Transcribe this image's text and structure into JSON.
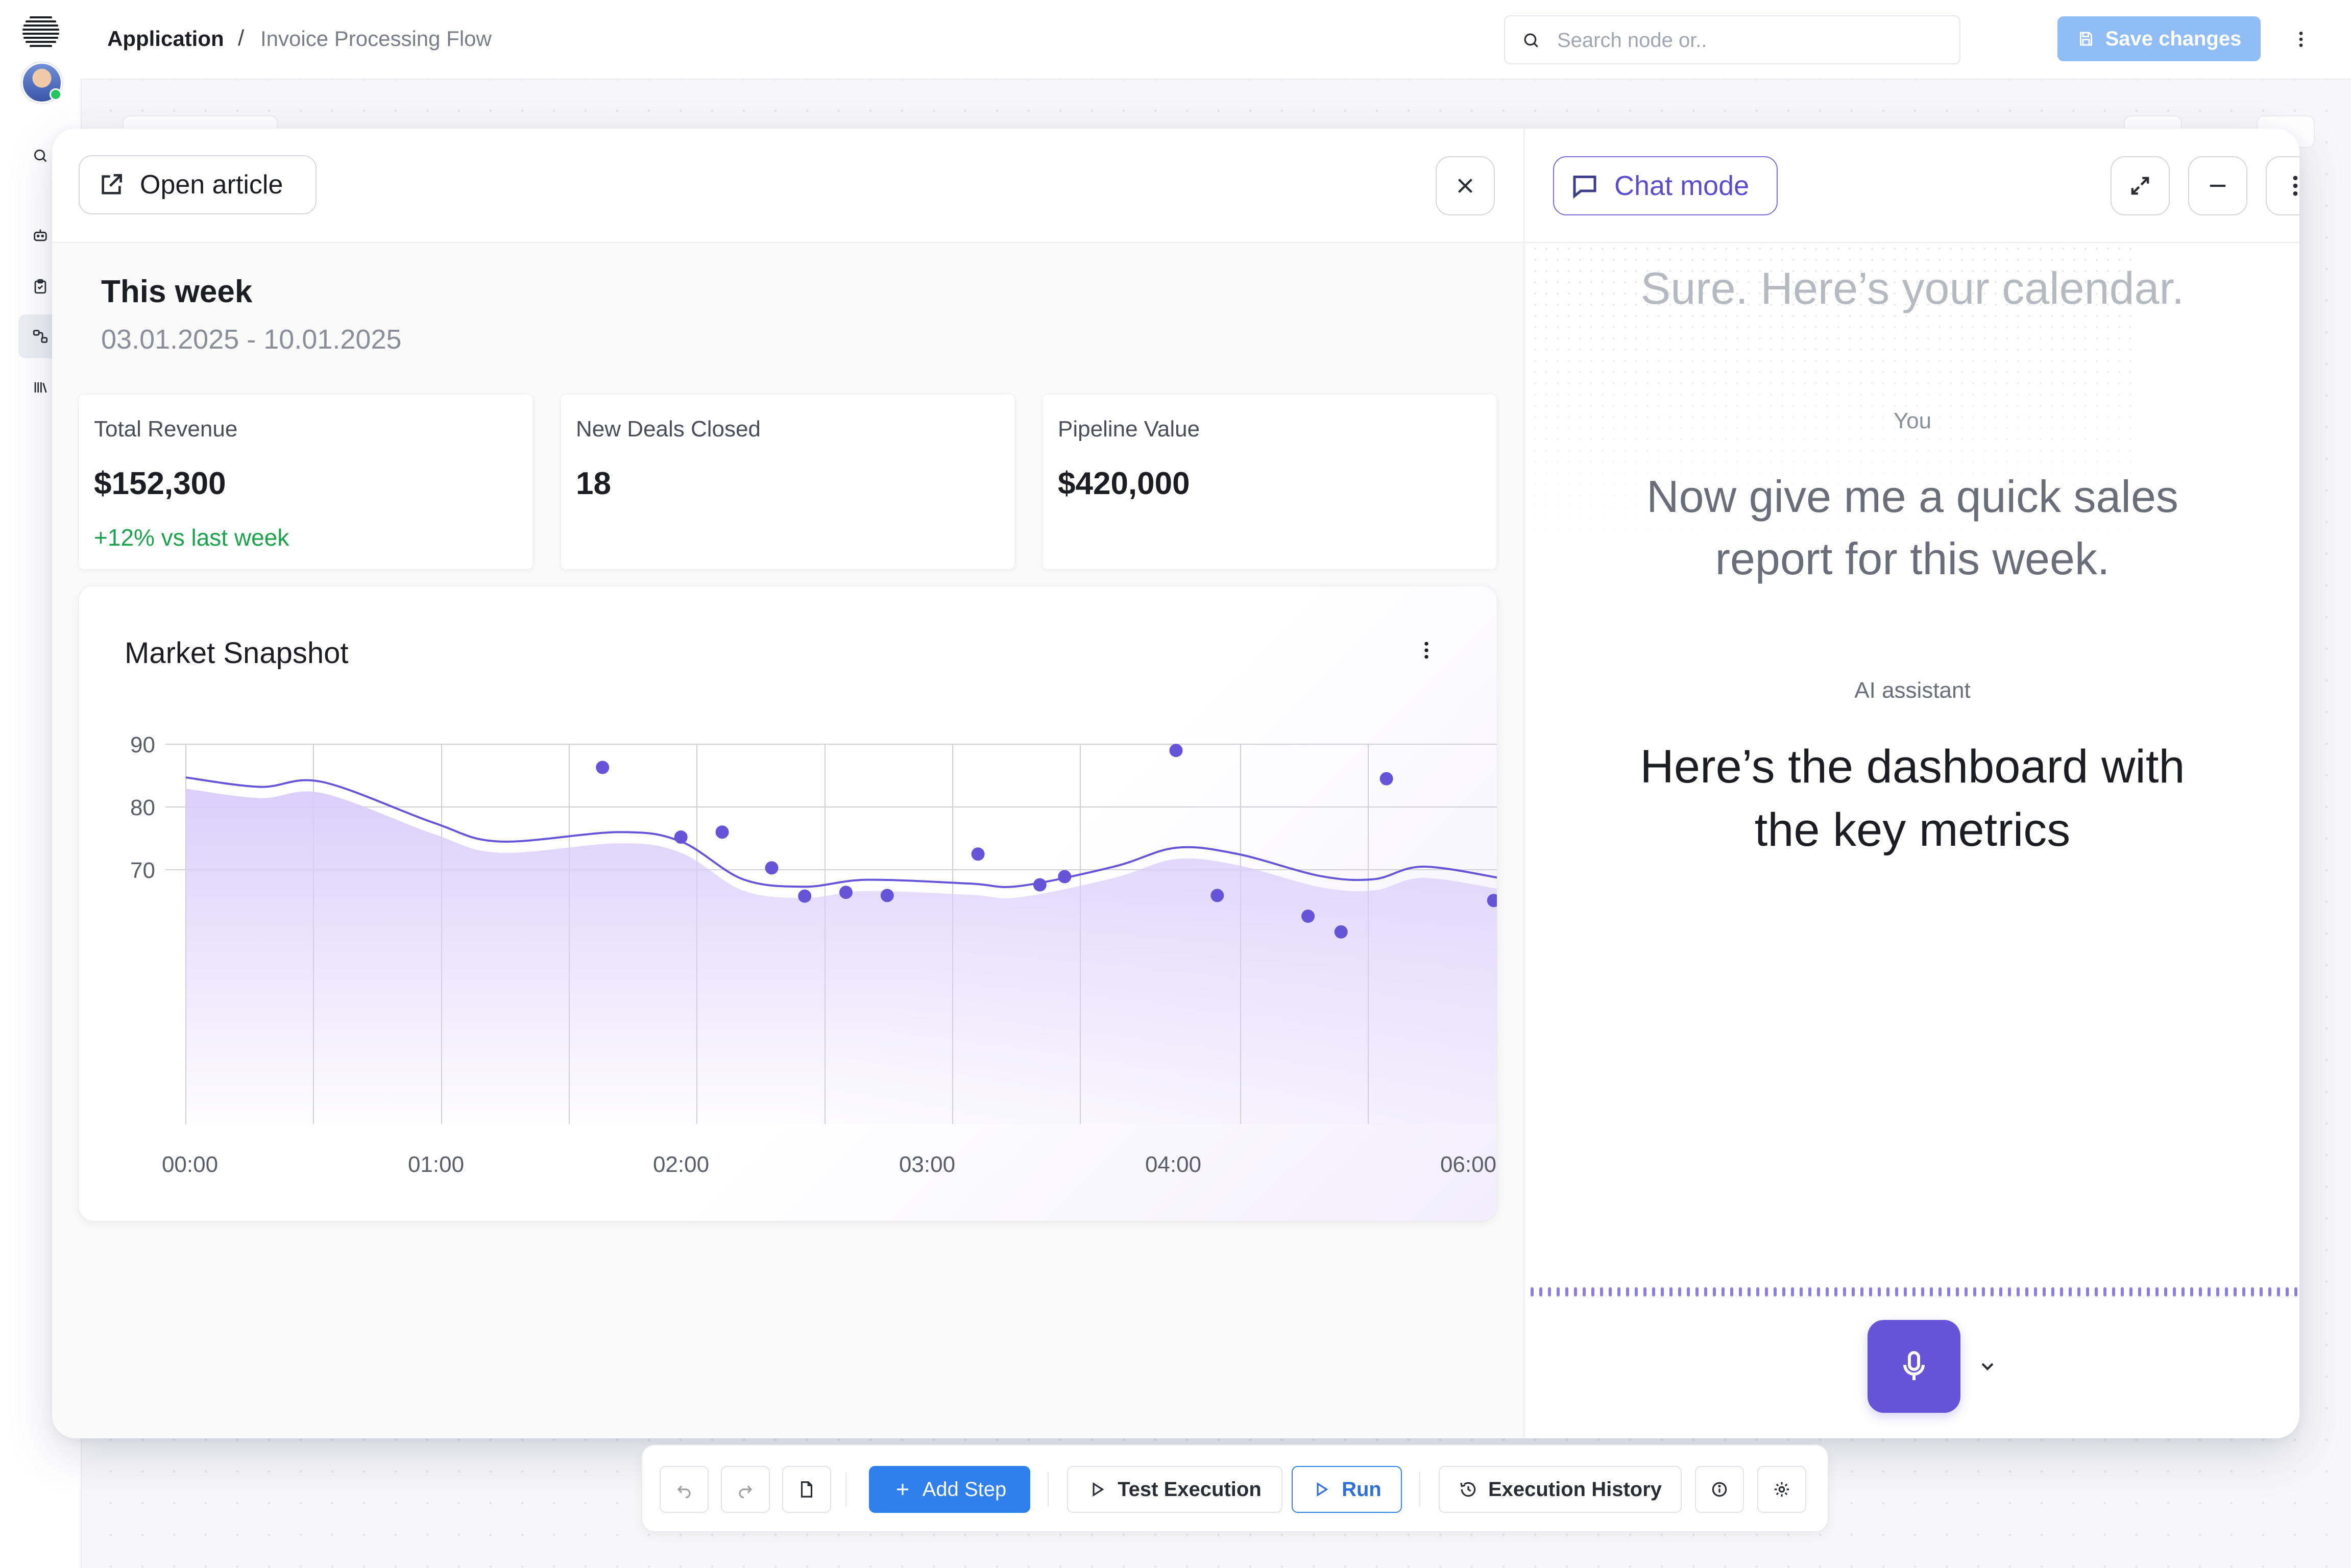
{
  "breadcrumb": {
    "app": "Application",
    "separator": "/",
    "flow": "Invoice Processing Flow"
  },
  "search": {
    "placeholder": "Search node or.."
  },
  "topbar": {
    "save_label": "Save changes"
  },
  "modal": {
    "open_article_label": "Open article",
    "week": {
      "title": "This week",
      "range": "03.01.2025 - 10.01.2025"
    },
    "kpis": [
      {
        "label": "Total Revenue",
        "value": "$152,300",
        "delta": "+12% vs last week"
      },
      {
        "label": "New Deals Closed",
        "value": "18"
      },
      {
        "label": "Pipeline Value",
        "value": "$420,000"
      }
    ],
    "chart": {
      "title": "Market Snapshot"
    }
  },
  "chat": {
    "mode_label": "Chat mode",
    "messages": [
      {
        "text": "Sure. Here’s your calendar."
      },
      {
        "author": "You",
        "line1": "Now give me a quick sales",
        "line2": "report for this week."
      },
      {
        "author": "AI assistant",
        "line1": "Here’s the dashboard with",
        "line2": "the key metrics"
      }
    ]
  },
  "toolbar": {
    "add_step": "Add Step",
    "test_execution": "Test Execution",
    "run": "Run",
    "execution_history": "Execution History"
  },
  "colors": {
    "accent": "#6654d8",
    "primary": "#2f80ed",
    "positive": "#1aa34a",
    "area_fill": "#d9ccfa"
  },
  "chart_data": {
    "type": "line",
    "title": "Market Snapshot",
    "x_ticks": [
      "00:00",
      "01:00",
      "02:00",
      "03:00",
      "04:00",
      "06:00"
    ],
    "y_ticks": [
      70,
      80,
      90
    ],
    "ylim": [
      60,
      90
    ],
    "grid": true,
    "series": [
      {
        "kind": "line",
        "points": [
          [
            "00:00",
            84.7
          ],
          [
            "00:18",
            83.2
          ],
          [
            "00:33",
            84.0
          ],
          [
            "01:00",
            77.5
          ],
          [
            "01:16",
            74.5
          ],
          [
            "01:45",
            76.0
          ],
          [
            "02:00",
            74.5
          ],
          [
            "02:15",
            68.5
          ],
          [
            "02:30",
            67.3
          ],
          [
            "02:45",
            68.4
          ],
          [
            "03:10",
            67.8
          ],
          [
            "03:22",
            67.4
          ],
          [
            "03:45",
            70.5
          ],
          [
            "04:00",
            73.5
          ],
          [
            "04:15",
            72.5
          ],
          [
            "04:35",
            69.0
          ],
          [
            "04:48",
            68.5
          ],
          [
            "05:00",
            70.5
          ],
          [
            "05:20",
            68.5
          ]
        ]
      },
      {
        "kind": "scatter",
        "points": [
          [
            "01:41",
            86.3
          ],
          [
            "02:00",
            75.2
          ],
          [
            "02:10",
            76.0
          ],
          [
            "02:22",
            70.3
          ],
          [
            "02:30",
            65.8
          ],
          [
            "02:40",
            66.4
          ],
          [
            "02:50",
            65.9
          ],
          [
            "03:12",
            72.5
          ],
          [
            "03:27",
            67.6
          ],
          [
            "03:33",
            68.9
          ],
          [
            "04:00",
            89.0
          ],
          [
            "04:10",
            65.9
          ],
          [
            "04:32",
            62.6
          ],
          [
            "04:40",
            60.1
          ],
          [
            "04:51",
            84.5
          ],
          [
            "05:17",
            65.1
          ]
        ]
      }
    ]
  }
}
